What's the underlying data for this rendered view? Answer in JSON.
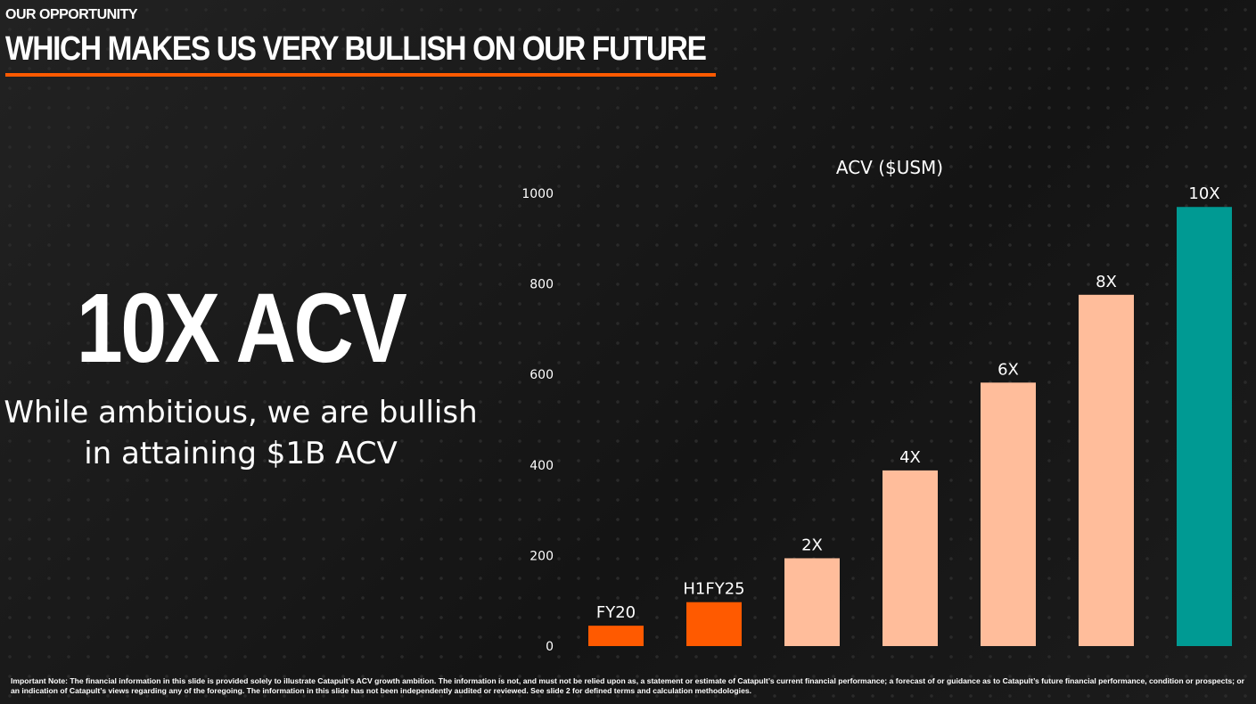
{
  "header": {
    "kicker": "OUR OPPORTUNITY",
    "title": "WHICH MAKES US VERY BULLISH ON OUR FUTURE"
  },
  "hero": {
    "headline": "10X ACV",
    "subtitle": "While ambitious, we are bullish in attaining $1B ACV"
  },
  "colors": {
    "accent": "#ff5a00",
    "projection": "#ffbd9b",
    "target": "#009a93"
  },
  "chart_data": {
    "type": "bar",
    "title": "ACV ($USM)",
    "ylim": [
      0,
      1000
    ],
    "yticks": [
      0,
      200,
      400,
      600,
      800,
      1000
    ],
    "grid": false,
    "categories": [
      "FY20",
      "H1FY25",
      "2X",
      "4X",
      "6X",
      "8X",
      "10X"
    ],
    "values": [
      45,
      97,
      194,
      388,
      582,
      776,
      970
    ],
    "bar_colors": [
      "#ff5a00",
      "#ff5a00",
      "#ffbd9b",
      "#ffbd9b",
      "#ffbd9b",
      "#ffbd9b",
      "#009a93"
    ]
  },
  "footer": {
    "note": "Important Note: The financial information in this slide is provided solely to illustrate Catapult’s ACV growth ambition. The information is not, and must not be relied upon as, a statement or estimate of Catapult’s current financial performance; a forecast of or guidance as to Catapult’s future financial performance, condition or prospects; or an indication of Catapult’s views regarding any of the foregoing. The information in this slide has not been independently audited or reviewed. See slide 2 for defined terms and calculation methodologies."
  }
}
